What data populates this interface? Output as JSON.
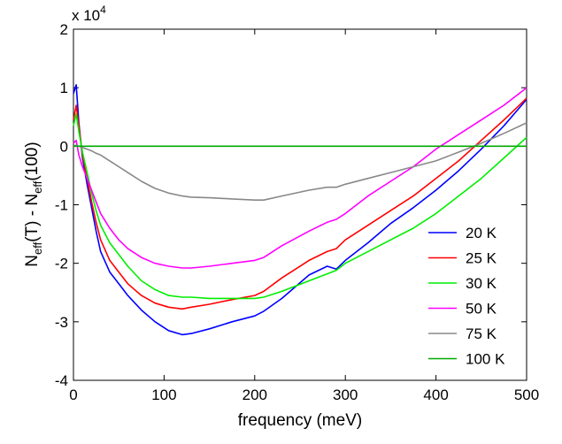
{
  "chart_data": {
    "type": "line",
    "xlabel": "frequency (meV)",
    "ylabel": "N_eff(T) - N_eff(100)",
    "ylabel_parts": {
      "base": "N",
      "sub1": "eff",
      "middle": "(T) - N",
      "sub2": "eff",
      "end": "(100)"
    },
    "y_scale_label": {
      "base": "x 10",
      "exponent": "4"
    },
    "xlim": [
      0,
      500
    ],
    "ylim": [
      -4,
      2
    ],
    "xticks": [
      0,
      100,
      200,
      300,
      400,
      500
    ],
    "yticks": [
      -4,
      -3,
      -2,
      -1,
      0,
      1,
      2
    ],
    "grid": false,
    "legend_position": "bottom-right",
    "series": [
      {
        "name": "20 K",
        "color": "#0000ff",
        "x": [
          0,
          3,
          6,
          10,
          15,
          20,
          25,
          30,
          40,
          50,
          60,
          75,
          90,
          105,
          120,
          130,
          150,
          175,
          200,
          210,
          230,
          260,
          280,
          290,
          300,
          325,
          350,
          375,
          400,
          425,
          450,
          475,
          500
        ],
        "y": [
          0.9,
          1.05,
          0.4,
          -0.2,
          -0.65,
          -1.05,
          -1.45,
          -1.8,
          -2.15,
          -2.35,
          -2.55,
          -2.8,
          -3.0,
          -3.15,
          -3.22,
          -3.2,
          -3.12,
          -3.0,
          -2.9,
          -2.82,
          -2.6,
          -2.2,
          -2.05,
          -2.1,
          -1.95,
          -1.65,
          -1.32,
          -1.05,
          -0.75,
          -0.42,
          -0.05,
          0.35,
          0.8
        ]
      },
      {
        "name": "25 K",
        "color": "#ff0000",
        "x": [
          0,
          3,
          6,
          10,
          15,
          20,
          25,
          30,
          40,
          50,
          60,
          75,
          90,
          105,
          120,
          130,
          150,
          175,
          200,
          210,
          230,
          260,
          280,
          290,
          300,
          325,
          350,
          375,
          400,
          425,
          450,
          475,
          500
        ],
        "y": [
          0.45,
          0.7,
          0.35,
          -0.15,
          -0.55,
          -0.95,
          -1.3,
          -1.6,
          -1.95,
          -2.15,
          -2.35,
          -2.55,
          -2.68,
          -2.75,
          -2.78,
          -2.75,
          -2.7,
          -2.62,
          -2.55,
          -2.48,
          -2.25,
          -1.95,
          -1.8,
          -1.75,
          -1.6,
          -1.35,
          -1.1,
          -0.85,
          -0.55,
          -0.25,
          0.1,
          0.45,
          0.82
        ]
      },
      {
        "name": "30 K",
        "color": "#00ee00",
        "x": [
          0,
          3,
          6,
          10,
          15,
          20,
          25,
          30,
          40,
          50,
          60,
          75,
          90,
          105,
          120,
          130,
          150,
          175,
          200,
          210,
          230,
          260,
          280,
          290,
          300,
          325,
          350,
          375,
          400,
          425,
          450,
          475,
          500
        ],
        "y": [
          0.35,
          0.55,
          0.25,
          -0.1,
          -0.45,
          -0.8,
          -1.1,
          -1.35,
          -1.65,
          -1.85,
          -2.05,
          -2.3,
          -2.45,
          -2.55,
          -2.58,
          -2.58,
          -2.6,
          -2.6,
          -2.6,
          -2.58,
          -2.48,
          -2.3,
          -2.18,
          -2.12,
          -2.0,
          -1.8,
          -1.6,
          -1.4,
          -1.15,
          -0.85,
          -0.55,
          -0.2,
          0.15
        ]
      },
      {
        "name": "50 K",
        "color": "#ff00ff",
        "x": [
          0,
          3,
          6,
          10,
          15,
          20,
          25,
          30,
          40,
          50,
          60,
          75,
          90,
          105,
          120,
          130,
          150,
          175,
          200,
          210,
          230,
          260,
          280,
          290,
          300,
          325,
          350,
          375,
          400,
          425,
          450,
          475,
          500
        ],
        "y": [
          0.05,
          0.1,
          -0.15,
          -0.35,
          -0.55,
          -0.75,
          -0.95,
          -1.15,
          -1.4,
          -1.6,
          -1.75,
          -1.9,
          -2.0,
          -2.05,
          -2.08,
          -2.08,
          -2.05,
          -2.0,
          -1.95,
          -1.9,
          -1.7,
          -1.45,
          -1.3,
          -1.25,
          -1.15,
          -0.85,
          -0.6,
          -0.35,
          -0.05,
          0.2,
          0.45,
          0.7,
          1.0
        ]
      },
      {
        "name": "75 K",
        "color": "#888888",
        "x": [
          0,
          3,
          6,
          10,
          15,
          20,
          25,
          30,
          40,
          50,
          60,
          75,
          90,
          105,
          120,
          130,
          150,
          175,
          200,
          210,
          230,
          260,
          280,
          290,
          300,
          325,
          350,
          375,
          400,
          425,
          450,
          475,
          500
        ],
        "y": [
          0.0,
          0.02,
          0.0,
          -0.02,
          -0.05,
          -0.08,
          -0.12,
          -0.15,
          -0.25,
          -0.35,
          -0.45,
          -0.6,
          -0.72,
          -0.8,
          -0.85,
          -0.87,
          -0.88,
          -0.9,
          -0.92,
          -0.92,
          -0.85,
          -0.75,
          -0.7,
          -0.7,
          -0.65,
          -0.55,
          -0.45,
          -0.35,
          -0.25,
          -0.1,
          0.05,
          0.22,
          0.4
        ]
      },
      {
        "name": "100 K",
        "color": "#00aa00",
        "x": [
          0,
          500
        ],
        "y": [
          0,
          0
        ]
      }
    ]
  }
}
